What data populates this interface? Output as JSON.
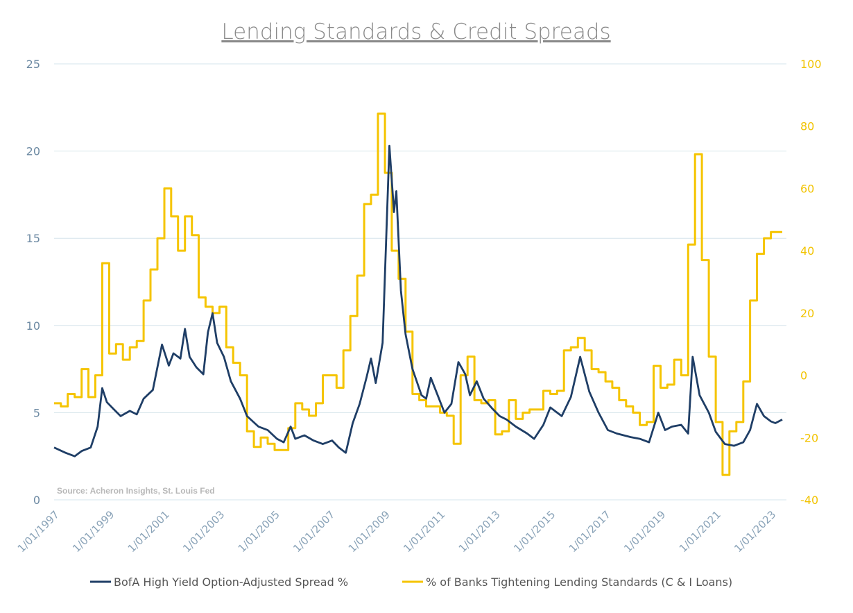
{
  "chart_data": {
    "type": "line",
    "title": "Lending Standards & Credit Spreads",
    "source": "Source: Acheron Insights, St. Louis Fed",
    "x_range": [
      "1997-01-01",
      "2023-06-01"
    ],
    "x_tick_labels": [
      "1/01/1997",
      "1/01/1999",
      "1/01/2001",
      "1/01/2003",
      "1/01/2005",
      "1/01/2007",
      "1/01/2009",
      "1/01/2011",
      "1/01/2013",
      "1/01/2015",
      "1/01/2017",
      "1/01/2019",
      "1/01/2021",
      "1/01/2023"
    ],
    "y_left": {
      "min": 0,
      "max": 25,
      "ticks": [
        0,
        5,
        10,
        15,
        20,
        25
      ]
    },
    "y_right": {
      "min": -40,
      "max": 100,
      "ticks": [
        -40,
        -20,
        0,
        20,
        40,
        60,
        80,
        100
      ]
    },
    "grid": true,
    "legend_position": "bottom",
    "series": [
      {
        "name": "BofA High Yield Option-Adjusted Spread %",
        "axis": "left",
        "color": "#1f3e66",
        "points": [
          [
            "1997-01-01",
            3.0
          ],
          [
            "1997-06-01",
            2.7
          ],
          [
            "1997-10-01",
            2.5
          ],
          [
            "1998-01-01",
            2.8
          ],
          [
            "1998-05-01",
            3.0
          ],
          [
            "1998-08-01",
            4.2
          ],
          [
            "1998-10-01",
            6.4
          ],
          [
            "1998-12-01",
            5.6
          ],
          [
            "1999-03-01",
            5.2
          ],
          [
            "1999-06-01",
            4.8
          ],
          [
            "1999-10-01",
            5.1
          ],
          [
            "2000-01-01",
            4.9
          ],
          [
            "2000-04-01",
            5.8
          ],
          [
            "2000-08-01",
            6.3
          ],
          [
            "2000-12-01",
            8.9
          ],
          [
            "2001-03-01",
            7.7
          ],
          [
            "2001-05-01",
            8.4
          ],
          [
            "2001-08-01",
            8.1
          ],
          [
            "2001-10-01",
            9.8
          ],
          [
            "2001-12-01",
            8.2
          ],
          [
            "2002-03-01",
            7.6
          ],
          [
            "2002-06-01",
            7.2
          ],
          [
            "2002-08-01",
            9.6
          ],
          [
            "2002-10-01",
            10.7
          ],
          [
            "2002-12-01",
            9.0
          ],
          [
            "2003-03-01",
            8.2
          ],
          [
            "2003-06-01",
            6.8
          ],
          [
            "2003-10-01",
            5.8
          ],
          [
            "2004-01-01",
            4.8
          ],
          [
            "2004-06-01",
            4.2
          ],
          [
            "2004-10-01",
            4.0
          ],
          [
            "2005-02-01",
            3.5
          ],
          [
            "2005-05-01",
            3.3
          ],
          [
            "2005-08-01",
            4.2
          ],
          [
            "2005-10-01",
            3.5
          ],
          [
            "2006-02-01",
            3.7
          ],
          [
            "2006-06-01",
            3.4
          ],
          [
            "2006-10-01",
            3.2
          ],
          [
            "2007-02-01",
            3.4
          ],
          [
            "2007-05-01",
            3.0
          ],
          [
            "2007-08-01",
            2.7
          ],
          [
            "2007-11-01",
            4.4
          ],
          [
            "2008-02-01",
            5.5
          ],
          [
            "2008-05-01",
            7.0
          ],
          [
            "2008-07-01",
            8.1
          ],
          [
            "2008-09-01",
            6.7
          ],
          [
            "2008-12-01",
            9.0
          ],
          [
            "2009-03-01",
            20.3
          ],
          [
            "2009-05-01",
            16.5
          ],
          [
            "2009-06-01",
            17.7
          ],
          [
            "2009-08-01",
            12.0
          ],
          [
            "2009-10-01",
            9.5
          ],
          [
            "2010-01-01",
            7.5
          ],
          [
            "2010-05-01",
            6.0
          ],
          [
            "2010-07-01",
            5.8
          ],
          [
            "2010-09-01",
            7.0
          ],
          [
            "2010-12-01",
            6.0
          ],
          [
            "2011-03-01",
            5.0
          ],
          [
            "2011-06-01",
            5.5
          ],
          [
            "2011-09-01",
            7.9
          ],
          [
            "2011-12-01",
            7.2
          ],
          [
            "2012-02-01",
            6.0
          ],
          [
            "2012-05-01",
            6.8
          ],
          [
            "2012-08-01",
            5.8
          ],
          [
            "2012-12-01",
            5.2
          ],
          [
            "2013-03-01",
            4.8
          ],
          [
            "2013-06-01",
            4.6
          ],
          [
            "2013-10-01",
            4.2
          ],
          [
            "2014-03-01",
            3.8
          ],
          [
            "2014-06-01",
            3.5
          ],
          [
            "2014-10-01",
            4.3
          ],
          [
            "2015-01-01",
            5.3
          ],
          [
            "2015-06-01",
            4.8
          ],
          [
            "2015-10-01",
            5.9
          ],
          [
            "2016-02-01",
            8.2
          ],
          [
            "2016-06-01",
            6.2
          ],
          [
            "2016-10-01",
            5.0
          ],
          [
            "2017-02-01",
            4.0
          ],
          [
            "2017-06-01",
            3.8
          ],
          [
            "2017-12-01",
            3.6
          ],
          [
            "2018-04-01",
            3.5
          ],
          [
            "2018-08-01",
            3.3
          ],
          [
            "2018-12-01",
            5.0
          ],
          [
            "2019-03-01",
            4.0
          ],
          [
            "2019-06-01",
            4.2
          ],
          [
            "2019-10-01",
            4.3
          ],
          [
            "2020-01-01",
            3.8
          ],
          [
            "2020-03-01",
            8.2
          ],
          [
            "2020-06-01",
            6.0
          ],
          [
            "2020-10-01",
            5.0
          ],
          [
            "2021-01-01",
            3.9
          ],
          [
            "2021-05-01",
            3.2
          ],
          [
            "2021-09-01",
            3.1
          ],
          [
            "2022-01-01",
            3.3
          ],
          [
            "2022-04-01",
            4.0
          ],
          [
            "2022-07-01",
            5.5
          ],
          [
            "2022-10-01",
            4.8
          ],
          [
            "2023-01-01",
            4.5
          ],
          [
            "2023-03-01",
            4.4
          ],
          [
            "2023-06-01",
            4.6
          ]
        ]
      },
      {
        "name": "% of Banks Tightening Lending Standards (C & I Loans)",
        "axis": "right",
        "color": "#f5c400",
        "step": true,
        "points": [
          [
            "1997-01-01",
            -9
          ],
          [
            "1997-04-01",
            -10
          ],
          [
            "1997-07-01",
            -6
          ],
          [
            "1997-10-01",
            -7
          ],
          [
            "1998-01-01",
            2
          ],
          [
            "1998-04-01",
            -7
          ],
          [
            "1998-07-01",
            0
          ],
          [
            "1998-10-01",
            36
          ],
          [
            "1999-01-01",
            7
          ],
          [
            "1999-04-01",
            10
          ],
          [
            "1999-07-01",
            5
          ],
          [
            "1999-10-01",
            9
          ],
          [
            "2000-01-01",
            11
          ],
          [
            "2000-04-01",
            24
          ],
          [
            "2000-07-01",
            34
          ],
          [
            "2000-10-01",
            44
          ],
          [
            "2001-01-01",
            60
          ],
          [
            "2001-04-01",
            51
          ],
          [
            "2001-07-01",
            40
          ],
          [
            "2001-10-01",
            51
          ],
          [
            "2002-01-01",
            45
          ],
          [
            "2002-04-01",
            25
          ],
          [
            "2002-07-01",
            22
          ],
          [
            "2002-10-01",
            20
          ],
          [
            "2003-01-01",
            22
          ],
          [
            "2003-04-01",
            9
          ],
          [
            "2003-07-01",
            4
          ],
          [
            "2003-10-01",
            0
          ],
          [
            "2004-01-01",
            -18
          ],
          [
            "2004-04-01",
            -23
          ],
          [
            "2004-07-01",
            -20
          ],
          [
            "2004-10-01",
            -22
          ],
          [
            "2005-01-01",
            -24
          ],
          [
            "2005-04-01",
            -24
          ],
          [
            "2005-07-01",
            -17
          ],
          [
            "2005-10-01",
            -9
          ],
          [
            "2006-01-01",
            -11
          ],
          [
            "2006-04-01",
            -13
          ],
          [
            "2006-07-01",
            -9
          ],
          [
            "2006-10-01",
            0
          ],
          [
            "2007-01-01",
            0
          ],
          [
            "2007-04-01",
            -4
          ],
          [
            "2007-07-01",
            8
          ],
          [
            "2007-10-01",
            19
          ],
          [
            "2008-01-01",
            32
          ],
          [
            "2008-04-01",
            55
          ],
          [
            "2008-07-01",
            58
          ],
          [
            "2008-10-01",
            84
          ],
          [
            "2009-01-01",
            65
          ],
          [
            "2009-04-01",
            40
          ],
          [
            "2009-07-01",
            31
          ],
          [
            "2009-10-01",
            14
          ],
          [
            "2010-01-01",
            -6
          ],
          [
            "2010-04-01",
            -8
          ],
          [
            "2010-07-01",
            -10
          ],
          [
            "2010-10-01",
            -10
          ],
          [
            "2011-01-01",
            -12
          ],
          [
            "2011-04-01",
            -13
          ],
          [
            "2011-07-01",
            -22
          ],
          [
            "2011-10-01",
            0
          ],
          [
            "2012-01-01",
            6
          ],
          [
            "2012-04-01",
            -8
          ],
          [
            "2012-07-01",
            -9
          ],
          [
            "2012-10-01",
            -8
          ],
          [
            "2013-01-01",
            -19
          ],
          [
            "2013-04-01",
            -18
          ],
          [
            "2013-07-01",
            -8
          ],
          [
            "2013-10-01",
            -14
          ],
          [
            "2014-01-01",
            -12
          ],
          [
            "2014-04-01",
            -11
          ],
          [
            "2014-07-01",
            -11
          ],
          [
            "2014-10-01",
            -5
          ],
          [
            "2015-01-01",
            -6
          ],
          [
            "2015-04-01",
            -5
          ],
          [
            "2015-07-01",
            8
          ],
          [
            "2015-10-01",
            9
          ],
          [
            "2016-01-01",
            12
          ],
          [
            "2016-04-01",
            8
          ],
          [
            "2016-07-01",
            2
          ],
          [
            "2016-10-01",
            1
          ],
          [
            "2017-01-01",
            -2
          ],
          [
            "2017-04-01",
            -4
          ],
          [
            "2017-07-01",
            -8
          ],
          [
            "2017-10-01",
            -10
          ],
          [
            "2018-01-01",
            -12
          ],
          [
            "2018-04-01",
            -16
          ],
          [
            "2018-07-01",
            -15
          ],
          [
            "2018-10-01",
            3
          ],
          [
            "2019-01-01",
            -4
          ],
          [
            "2019-04-01",
            -3
          ],
          [
            "2019-07-01",
            5
          ],
          [
            "2019-10-01",
            0
          ],
          [
            "2020-01-01",
            42
          ],
          [
            "2020-04-01",
            71
          ],
          [
            "2020-07-01",
            37
          ],
          [
            "2020-10-01",
            6
          ],
          [
            "2021-01-01",
            -15
          ],
          [
            "2021-04-01",
            -32
          ],
          [
            "2021-07-01",
            -18
          ],
          [
            "2021-10-01",
            -15
          ],
          [
            "2022-01-01",
            -2
          ],
          [
            "2022-04-01",
            24
          ],
          [
            "2022-07-01",
            39
          ],
          [
            "2022-10-01",
            44
          ],
          [
            "2023-01-01",
            46
          ],
          [
            "2023-06-01",
            46
          ]
        ]
      }
    ]
  }
}
